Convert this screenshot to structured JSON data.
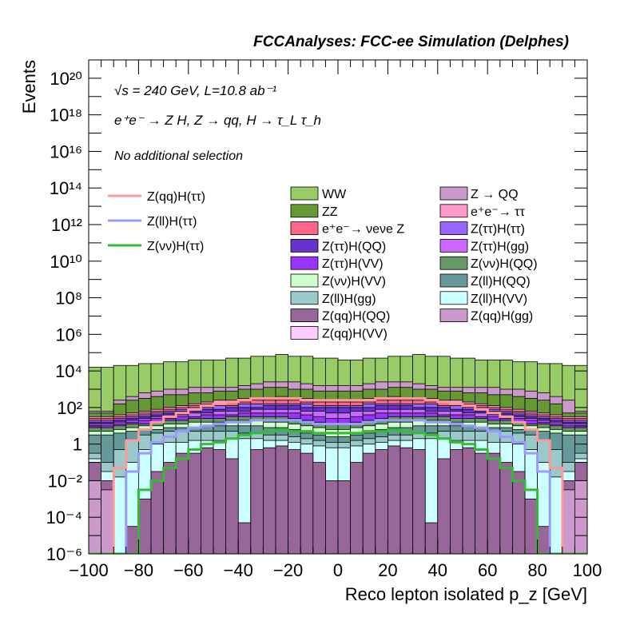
{
  "chart_data": {
    "type": "bar",
    "stacked": true,
    "log_y": true,
    "title": "FCCAnalyses: FCC-ee Simulation (Delphes)",
    "annotations": {
      "energy": "√s = 240 GeV, L=10.8 ab⁻¹",
      "process": "e⁺e⁻ → Z H, Z → qq, H → τ_L τ_h",
      "selection": "No additional selection"
    },
    "xlabel": "Reco lepton isolated p_z [GeV]",
    "ylabel": "Events",
    "xlim": [
      -100,
      100
    ],
    "ylim": [
      1e-06,
      1e+21
    ],
    "bin_width": 5,
    "x_ticks": [
      -100,
      -80,
      -60,
      -40,
      -20,
      0,
      20,
      40,
      60,
      80,
      100
    ],
    "x_tick_labels": [
      "−100",
      "−80",
      "−60",
      "−40",
      "−20",
      "0",
      "20",
      "40",
      "60",
      "80",
      "100"
    ],
    "y_ticks": [
      1e-06,
      0.0001,
      0.01,
      1,
      100.0,
      10000.0,
      1000000.0,
      100000000.0,
      10000000000.0,
      1000000000000.0,
      100000000000000.0,
      1e+16,
      1e+18,
      1e+20
    ],
    "y_tick_labels": [
      "10⁻⁶",
      "10⁻⁴",
      "10⁻²",
      "1",
      "10²",
      "10⁴",
      "10⁶",
      "10⁸",
      "10¹⁰",
      "10¹²",
      "10¹⁴",
      "10¹⁶",
      "10¹⁸",
      "10²⁰"
    ],
    "stack_order_top_first": [
      "WW",
      "Z → QQ",
      "ZZ",
      "e⁺e⁻→ ττ",
      "e⁺e⁻→ νeνe Z",
      "Z(ττ)H(ττ)",
      "Z(ττ)H(QQ)",
      "Z(ττ)H(gg)",
      "Z(ττ)H(VV)",
      "Z(νν)H(QQ)",
      "Z(νν)H(VV)",
      "Z(ll)H(QQ)",
      "Z(ll)H(gg)",
      "Z(ll)H(VV)",
      "Z(qq)H(QQ)",
      "Z(qq)H(gg)",
      "Z(qq)H(VV)"
    ],
    "stack_boundaries_log10": {
      "WW": [
        4.2,
        4.2,
        4.3,
        4.3,
        4.4,
        4.4,
        4.5,
        4.5,
        4.6,
        4.6,
        4.6,
        4.7,
        4.7,
        4.8,
        4.8,
        4.9,
        4.8,
        4.8,
        4.7,
        4.7,
        4.6,
        4.6,
        4.7,
        4.7,
        4.8,
        4.8,
        4.9,
        4.8,
        4.8,
        4.7,
        4.7,
        4.6,
        4.6,
        4.6,
        4.5,
        4.5,
        4.4,
        4.4,
        4.3,
        4.3
      ],
      "Z → QQ": [
        1.8,
        1.8,
        2.4,
        2.6,
        2.8,
        2.9,
        3.0,
        3.0,
        3.1,
        3.1,
        3.1,
        3.1,
        3.2,
        3.3,
        3.4,
        3.4,
        3.4,
        3.3,
        3.2,
        3.2,
        3.2,
        3.2,
        3.3,
        3.4,
        3.4,
        3.4,
        3.3,
        3.2,
        3.1,
        3.1,
        3.1,
        3.1,
        3.1,
        3.0,
        3.0,
        2.9,
        2.8,
        2.6,
        2.4,
        1.8
      ],
      "ZZ": [
        1.7,
        1.7,
        2.2,
        2.4,
        2.5,
        2.6,
        2.7,
        2.7,
        2.8,
        2.8,
        2.9,
        2.9,
        3.0,
        3.0,
        3.1,
        3.1,
        3.0,
        3.0,
        2.9,
        2.9,
        2.9,
        2.9,
        3.0,
        3.0,
        3.1,
        3.1,
        3.0,
        3.0,
        2.9,
        2.9,
        2.8,
        2.8,
        2.7,
        2.7,
        2.6,
        2.5,
        2.4,
        2.2,
        1.7,
        1.7
      ],
      "e⁺e⁻→ ττ": [
        1.5,
        1.5,
        1.6,
        1.7,
        1.8,
        1.9,
        2.0,
        2.1,
        2.2,
        2.3,
        2.4,
        2.4,
        2.5,
        2.5,
        2.5,
        2.6,
        2.5,
        2.5,
        2.4,
        2.4,
        2.4,
        2.4,
        2.5,
        2.5,
        2.6,
        2.5,
        2.5,
        2.5,
        2.4,
        2.4,
        2.3,
        2.2,
        2.1,
        2.0,
        1.9,
        1.8,
        1.7,
        1.6,
        1.5,
        1.5
      ],
      "e⁺e⁻→ νeνe Z": [
        1.4,
        1.4,
        1.5,
        1.6,
        1.7,
        1.8,
        1.9,
        2.0,
        2.1,
        2.2,
        2.2,
        2.3,
        2.3,
        2.4,
        2.4,
        2.4,
        2.4,
        2.3,
        2.3,
        2.3,
        2.3,
        2.3,
        2.3,
        2.4,
        2.4,
        2.4,
        2.4,
        2.3,
        2.3,
        2.2,
        2.2,
        2.1,
        2.0,
        1.9,
        1.8,
        1.7,
        1.6,
        1.5,
        1.4,
        1.4
      ],
      "Z(ττ)H(ττ)": [
        1.3,
        1.3,
        1.4,
        1.5,
        1.6,
        1.7,
        1.8,
        1.9,
        2.0,
        2.0,
        2.1,
        2.1,
        2.2,
        2.2,
        2.2,
        2.2,
        2.2,
        2.2,
        2.1,
        2.1,
        2.1,
        2.1,
        2.2,
        2.2,
        2.2,
        2.2,
        2.2,
        2.2,
        2.1,
        2.1,
        2.0,
        2.0,
        1.9,
        1.8,
        1.7,
        1.6,
        1.5,
        1.4,
        1.3,
        1.3
      ],
      "Z(ττ)H(QQ)": [
        1.2,
        1.2,
        1.3,
        1.4,
        1.5,
        1.6,
        1.7,
        1.8,
        1.8,
        1.9,
        1.9,
        2.0,
        2.0,
        2.0,
        2.1,
        2.1,
        2.1,
        2.0,
        2.0,
        2.0,
        2.0,
        2.0,
        2.0,
        2.1,
        2.1,
        2.1,
        2.0,
        2.0,
        2.0,
        1.9,
        1.9,
        1.8,
        1.8,
        1.7,
        1.6,
        1.5,
        1.4,
        1.3,
        1.2,
        1.2
      ],
      "Z(ττ)H(gg)": [
        1.1,
        1.1,
        1.2,
        1.3,
        1.4,
        1.5,
        1.6,
        1.6,
        1.7,
        1.7,
        1.8,
        1.8,
        1.8,
        1.9,
        1.9,
        1.9,
        1.9,
        1.8,
        1.8,
        1.7,
        1.7,
        1.8,
        1.8,
        1.9,
        1.9,
        1.9,
        1.9,
        1.8,
        1.8,
        1.8,
        1.7,
        1.7,
        1.6,
        1.6,
        1.5,
        1.4,
        1.3,
        1.2,
        1.1,
        1.1
      ],
      "Z(ττ)H(VV)": [
        1.0,
        1.0,
        1.1,
        1.2,
        1.3,
        1.4,
        1.4,
        1.5,
        1.5,
        1.6,
        1.6,
        1.6,
        1.7,
        1.7,
        1.7,
        1.7,
        1.7,
        1.6,
        1.5,
        1.4,
        1.4,
        1.5,
        1.6,
        1.7,
        1.7,
        1.7,
        1.7,
        1.7,
        1.6,
        1.6,
        1.6,
        1.5,
        1.5,
        1.4,
        1.4,
        1.3,
        1.2,
        1.1,
        1.0,
        1.0
      ],
      "Z(νν)H(QQ)": [
        0.9,
        0.9,
        1.0,
        1.1,
        1.1,
        1.2,
        1.3,
        1.3,
        1.4,
        1.4,
        1.4,
        1.5,
        1.5,
        1.5,
        1.5,
        1.5,
        1.4,
        1.3,
        1.2,
        1.1,
        1.1,
        1.2,
        1.3,
        1.4,
        1.5,
        1.5,
        1.5,
        1.5,
        1.5,
        1.4,
        1.4,
        1.4,
        1.3,
        1.3,
        1.2,
        1.1,
        1.1,
        1.0,
        0.9,
        0.9
      ],
      "Z(νν)H(VV)": [
        0.7,
        0.7,
        0.8,
        0.9,
        1.0,
        1.0,
        1.1,
        1.1,
        1.2,
        1.2,
        1.2,
        1.3,
        1.3,
        1.3,
        1.2,
        1.2,
        1.1,
        1.0,
        0.9,
        0.8,
        0.8,
        0.9,
        1.0,
        1.1,
        1.2,
        1.2,
        1.3,
        1.3,
        1.3,
        1.2,
        1.2,
        1.2,
        1.1,
        1.1,
        1.0,
        1.0,
        0.9,
        0.8,
        0.7,
        0.7
      ],
      "Z(ll)H(QQ)": [
        0.5,
        0.5,
        0.6,
        0.7,
        0.8,
        0.8,
        0.9,
        0.9,
        0.9,
        1.0,
        1.0,
        1.0,
        1.0,
        1.0,
        0.9,
        0.9,
        0.8,
        0.6,
        0.5,
        0.4,
        0.4,
        0.5,
        0.6,
        0.8,
        0.9,
        0.9,
        1.0,
        1.0,
        1.0,
        1.0,
        1.0,
        0.9,
        0.9,
        0.9,
        0.8,
        0.8,
        0.7,
        0.6,
        0.5,
        0.5
      ],
      "Z(ll)H(gg)": [
        -0.5,
        -1.0,
        -0.3,
        0.2,
        0.5,
        0.6,
        0.7,
        0.7,
        0.7,
        0.7,
        0.7,
        0.7,
        0.6,
        0.6,
        0.5,
        0.5,
        0.4,
        0.3,
        0.2,
        0.1,
        0.1,
        0.2,
        0.3,
        0.4,
        0.5,
        0.5,
        0.6,
        0.6,
        0.7,
        0.7,
        0.7,
        0.7,
        0.7,
        0.7,
        0.6,
        0.5,
        0.2,
        -0.3,
        -1.0,
        -0.5
      ],
      "Z(ll)H(VV)": [
        -0.8,
        -1.5,
        -1.8,
        -1.0,
        -0.3,
        0.0,
        0.1,
        0.1,
        0.2,
        0.2,
        0.2,
        0.3,
        0.3,
        0.3,
        0.2,
        0.2,
        0.1,
        0.0,
        -0.1,
        -0.2,
        -0.2,
        -0.1,
        0.0,
        0.1,
        0.2,
        0.2,
        0.3,
        0.3,
        0.3,
        0.2,
        0.2,
        0.2,
        0.1,
        0.1,
        0.0,
        -0.3,
        -1.0,
        -1.8,
        -1.5,
        -0.8
      ],
      "Z(qq)H(QQ)": [
        -1.0,
        -2.0,
        -6.0,
        -4.5,
        -3.0,
        -1.5,
        -1.0,
        -0.5,
        -0.5,
        -0.2,
        -0.3,
        -0.8,
        -4.3,
        -0.3,
        -0.2,
        -0.1,
        -0.3,
        -0.5,
        -1.0,
        -2.0,
        -2.0,
        -1.0,
        -0.5,
        -0.3,
        -0.1,
        -0.2,
        -0.3,
        -4.3,
        -0.8,
        -0.3,
        -0.2,
        -0.5,
        -0.5,
        -1.0,
        -1.5,
        -3.0,
        -4.5,
        -6.0,
        -2.0,
        -1.0
      ],
      "Z(qq)H(gg)": [
        -2.0,
        -2.5,
        -6.0,
        -6.0,
        -6.0,
        -6.0,
        -6.0,
        -6.0,
        -6.0,
        -6.0,
        -6.0,
        -6.0,
        -6.0,
        -6.0,
        -6.0,
        -6.0,
        -6.0,
        -6.0,
        -6.0,
        -6.0,
        -6.0,
        -6.0,
        -6.0,
        -6.0,
        -6.0,
        -6.0,
        -6.0,
        -6.0,
        -6.0,
        -6.0,
        -6.0,
        -6.0,
        -6.0,
        -6.0,
        -6.0,
        -6.0,
        -6.0,
        -6.0,
        -2.5,
        -2.0
      ],
      "Z(qq)H(VV)": [
        -6.0,
        -6.0,
        -6.0,
        -6.0,
        -6.0,
        -6.0,
        -6.0,
        -6.0,
        -6.0,
        -6.0,
        -6.0,
        -6.0,
        -6.0,
        -6.0,
        -6.0,
        -6.0,
        -6.0,
        -6.0,
        -6.0,
        -6.0,
        -6.0,
        -6.0,
        -6.0,
        -6.0,
        -6.0,
        -6.0,
        -6.0,
        -6.0,
        -6.0,
        -6.0,
        -6.0,
        -6.0,
        -6.0,
        -6.0,
        -6.0,
        -6.0,
        -6.0,
        -6.0,
        -6.0,
        -6.0
      ]
    },
    "signal_lines_log10": [
      {
        "name": "Z(qq)H(ττ)",
        "values": [
          -6.0,
          -6.0,
          -1.3,
          0.2,
          0.8,
          1.2,
          1.5,
          1.7,
          1.9,
          2.1,
          2.2,
          2.3,
          2.4,
          2.5,
          2.5,
          2.5,
          2.5,
          2.4,
          2.4,
          2.4,
          2.4,
          2.4,
          2.4,
          2.5,
          2.5,
          2.5,
          2.5,
          2.4,
          2.3,
          2.2,
          2.1,
          1.9,
          1.7,
          1.5,
          1.2,
          0.8,
          0.2,
          -1.3,
          -6.0,
          -6.0
        ]
      },
      {
        "name": "Z(ll)H(ττ)",
        "values": [
          -6.0,
          -6.0,
          -6.0,
          -1.5,
          -0.5,
          0.1,
          0.4,
          0.7,
          0.9,
          1.0,
          1.1,
          1.2,
          1.2,
          1.3,
          1.3,
          1.3,
          1.3,
          1.2,
          1.1,
          1.1,
          1.1,
          1.1,
          1.2,
          1.3,
          1.3,
          1.3,
          1.3,
          1.2,
          1.2,
          1.1,
          1.0,
          0.9,
          0.7,
          0.4,
          0.1,
          -0.5,
          -1.5,
          -6.0,
          -6.0,
          -6.0
        ]
      },
      {
        "name": "Z(νν)H(ττ)",
        "values": [
          -6.0,
          -6.0,
          -6.0,
          -6.0,
          -2.5,
          -2.0,
          -1.3,
          -0.8,
          -0.3,
          0.0,
          0.1,
          0.3,
          0.5,
          0.6,
          0.7,
          0.8,
          0.7,
          0.7,
          0.6,
          0.6,
          0.6,
          0.6,
          0.7,
          0.7,
          0.8,
          0.7,
          0.6,
          0.5,
          0.3,
          0.1,
          0.0,
          -0.3,
          -0.8,
          -1.3,
          -2.0,
          -2.5,
          -6.0,
          -6.0,
          -6.0,
          -6.0
        ]
      }
    ],
    "legend": {
      "placement": "top",
      "signal_entries": [
        {
          "label": "Z(qq)H(ττ)",
          "color": "#ff9999"
        },
        {
          "label": "Z(ll)H(ττ)",
          "color": "#9999ff"
        },
        {
          "label": "Z(νν)H(ττ)",
          "color": "#33bb33"
        }
      ],
      "background_entries_col1": [
        {
          "label": "WW",
          "color": "#99cc66"
        },
        {
          "label": "ZZ",
          "color": "#669933"
        },
        {
          "label": "e⁺e⁻→ νeνe Z",
          "color": "#ff6688"
        },
        {
          "label": "Z(ττ)H(QQ)",
          "color": "#6633cc"
        },
        {
          "label": "Z(ττ)H(VV)",
          "color": "#9933ff"
        },
        {
          "label": "Z(νν)H(VV)",
          "color": "#ccffcc"
        },
        {
          "label": "Z(ll)H(gg)",
          "color": "#99c9c9"
        },
        {
          "label": "Z(qq)H(QQ)",
          "color": "#996699"
        },
        {
          "label": "Z(qq)H(VV)",
          "color": "#ffccff"
        }
      ],
      "background_entries_col2": [
        {
          "label": "Z → QQ",
          "color": "#cc99cc"
        },
        {
          "label": "e⁺e⁻→ ττ",
          "color": "#ff99cc"
        },
        {
          "label": "Z(ττ)H(ττ)",
          "color": "#9966ff"
        },
        {
          "label": "Z(ττ)H(gg)",
          "color": "#cc66ff"
        },
        {
          "label": "Z(νν)H(QQ)",
          "color": "#669966"
        },
        {
          "label": "Z(ll)H(QQ)",
          "color": "#669999"
        },
        {
          "label": "Z(ll)H(VV)",
          "color": "#ccffff"
        },
        {
          "label": "Z(qq)H(gg)",
          "color": "#cc99cc"
        }
      ]
    }
  }
}
